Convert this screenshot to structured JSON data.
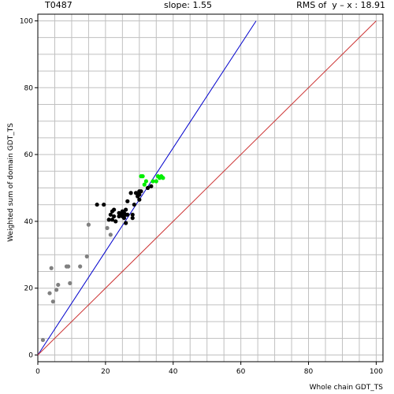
{
  "header": {
    "target": "T0487",
    "slope": "slope: 1.55",
    "rms": "RMS of  y – x : 18.91"
  },
  "chart_data": {
    "type": "scatter",
    "title": "",
    "xlabel": "Whole chain GDT_TS",
    "ylabel": "Weighted sum of domain GDT_TS",
    "xlim": [
      0,
      102
    ],
    "ylim": [
      -2,
      102
    ],
    "x_ticks": [
      0,
      20,
      40,
      60,
      80,
      100
    ],
    "y_ticks": [
      0,
      20,
      40,
      60,
      80,
      100
    ],
    "grid": true,
    "grid_step": 5,
    "lines": [
      {
        "name": "slope-fit",
        "color": "#0000cc",
        "slope": 1.55,
        "x": [
          0,
          64.5
        ]
      },
      {
        "name": "identity",
        "color": "#cc3333",
        "slope": 1.0,
        "x": [
          0,
          100
        ]
      }
    ],
    "series": [
      {
        "color": "#808080",
        "points": [
          [
            1.5,
            4.5
          ],
          [
            3.5,
            18.5
          ],
          [
            4.0,
            26.0
          ],
          [
            4.5,
            16.0
          ],
          [
            5.5,
            19.5
          ],
          [
            6.0,
            21.0
          ],
          [
            8.5,
            26.5
          ],
          [
            9.0,
            26.5
          ],
          [
            9.5,
            21.5
          ],
          [
            12.5,
            26.5
          ],
          [
            14.5,
            29.5
          ],
          [
            15.0,
            39.0
          ],
          [
            20.5,
            38.0
          ],
          [
            21.5,
            36.0
          ]
        ]
      },
      {
        "color": "#000000",
        "points": [
          [
            17.5,
            45.0
          ],
          [
            19.5,
            45.0
          ],
          [
            21.0,
            40.5
          ],
          [
            21.5,
            42.0
          ],
          [
            22.0,
            40.5
          ],
          [
            22.0,
            43.0
          ],
          [
            22.5,
            41.5
          ],
          [
            22.5,
            43.5
          ],
          [
            23.0,
            40.0
          ],
          [
            24.0,
            42.5
          ],
          [
            24.0,
            41.5
          ],
          [
            24.5,
            42.0
          ],
          [
            25.0,
            42.5
          ],
          [
            25.0,
            43.0
          ],
          [
            25.0,
            41.5
          ],
          [
            25.5,
            42.5
          ],
          [
            25.5,
            41.0
          ],
          [
            26.0,
            42.0
          ],
          [
            26.0,
            43.5
          ],
          [
            26.0,
            39.5
          ],
          [
            26.5,
            42.0
          ],
          [
            26.5,
            46.0
          ],
          [
            27.5,
            48.5
          ],
          [
            28.0,
            41.0
          ],
          [
            28.0,
            42.0
          ],
          [
            28.5,
            45.0
          ],
          [
            29.0,
            48.5
          ],
          [
            29.5,
            47.5
          ],
          [
            30.0,
            49.0
          ],
          [
            30.0,
            46.5
          ],
          [
            30.5,
            49.0
          ],
          [
            30.0,
            48.0
          ],
          [
            32.5,
            50.0
          ],
          [
            33.5,
            50.5
          ]
        ]
      },
      {
        "color": "#00ee00",
        "points": [
          [
            30.5,
            53.5
          ],
          [
            31.0,
            53.5
          ],
          [
            31.5,
            51.0
          ],
          [
            32.0,
            52.0
          ],
          [
            34.0,
            52.0
          ],
          [
            35.0,
            52.0
          ],
          [
            35.5,
            53.5
          ],
          [
            36.0,
            53.0
          ],
          [
            36.5,
            53.5
          ],
          [
            37.0,
            53.0
          ]
        ]
      }
    ]
  }
}
